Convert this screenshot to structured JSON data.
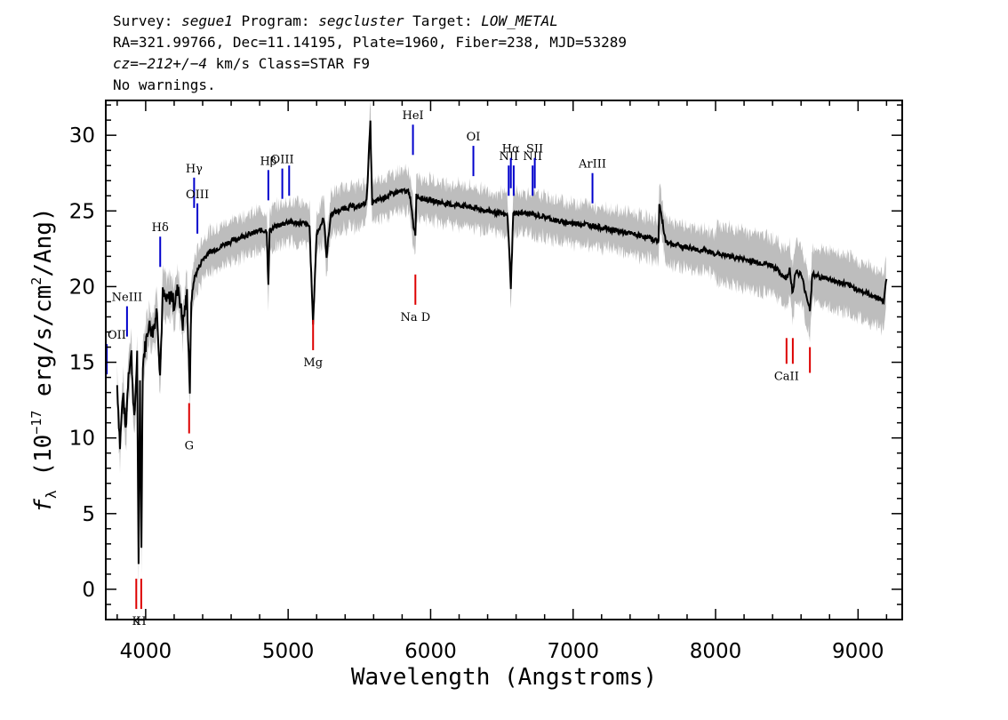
{
  "header": {
    "line1": {
      "survey_label": "Survey: ",
      "survey": "segue1",
      "program_label": " Program: ",
      "program": "segcluster",
      "target_label": " Target: ",
      "target": "LOW_METAL"
    },
    "line2": "RA=321.99766, Dec=11.14195, Plate=1960, Fiber=238, MJD=53289",
    "line3": {
      "cz": "cz=−212+/−4",
      "rest": " km/s Class=STAR F9"
    },
    "line4": "No warnings."
  },
  "chart_data": {
    "type": "line",
    "title": "",
    "xlabel": "Wavelength (Angstroms)",
    "ylabel_parts": {
      "f": "f",
      "sub": "λ",
      "pre": " (10",
      "exp1": "−17",
      "mid": " erg/s/cm",
      "exp2": "2",
      "post": "/Ang)"
    },
    "xlim": [
      3720,
      9310
    ],
    "ylim": [
      -2,
      32.3
    ],
    "xticks": [
      4000,
      5000,
      6000,
      7000,
      8000,
      9000
    ],
    "yticks": [
      0,
      5,
      10,
      15,
      20,
      25,
      30
    ],
    "series": [
      {
        "color": "#000000",
        "x": [
          3800,
          3820,
          3840,
          3860,
          3880,
          3900,
          3920,
          3940,
          3950,
          3960,
          3970,
          3980,
          4000,
          4020,
          4050,
          4080,
          4101,
          4120,
          4150,
          4180,
          4200,
          4230,
          4260,
          4290,
          4310,
          4320,
          4340,
          4360,
          4400,
          4450,
          4500,
          4550,
          4600,
          4650,
          4700,
          4750,
          4800,
          4850,
          4861,
          4870,
          4900,
          4950,
          5000,
          5050,
          5100,
          5150,
          5175,
          5185,
          5200,
          5250,
          5270,
          5300,
          5350,
          5400,
          5450,
          5500,
          5550,
          5577,
          5590,
          5650,
          5700,
          5750,
          5800,
          5850,
          5880,
          5893,
          5900,
          5950,
          6000,
          6050,
          6100,
          6150,
          6200,
          6250,
          6300,
          6350,
          6400,
          6450,
          6500,
          6540,
          6563,
          6580,
          6620,
          6700,
          6800,
          6900,
          7000,
          7100,
          7200,
          7300,
          7400,
          7500,
          7600,
          7605,
          7650,
          7700,
          7800,
          7900,
          8000,
          8100,
          8200,
          8300,
          8400,
          8498,
          8520,
          8542,
          8560,
          8600,
          8662,
          8680,
          8750,
          8800,
          8850,
          8900,
          8950,
          9000,
          9050,
          9100,
          9150,
          9180,
          9200
        ],
        "y": [
          13.5,
          9.5,
          13.0,
          10.5,
          14.5,
          15.5,
          11.0,
          15.5,
          1.2,
          14.0,
          3.0,
          15.0,
          16.2,
          17.5,
          17.0,
          18.5,
          14.2,
          19.5,
          19.0,
          19.5,
          18.8,
          20.0,
          17.5,
          19.5,
          13.0,
          19.0,
          20.5,
          21.0,
          21.8,
          22.3,
          22.5,
          22.8,
          23.0,
          23.2,
          23.4,
          23.5,
          23.7,
          23.7,
          20.0,
          23.7,
          23.9,
          24.1,
          24.3,
          24.2,
          24.2,
          24.0,
          17.5,
          20.0,
          23.5,
          24.5,
          22.0,
          24.8,
          25.0,
          25.2,
          25.3,
          25.3,
          25.6,
          30.8,
          25.5,
          25.8,
          26.0,
          26.2,
          26.3,
          26.3,
          24.0,
          23.5,
          26.0,
          25.8,
          25.7,
          25.6,
          25.5,
          25.4,
          25.4,
          25.3,
          25.2,
          25.1,
          25.0,
          24.9,
          24.8,
          24.7,
          20.0,
          24.8,
          24.9,
          24.8,
          24.6,
          24.3,
          24.2,
          24.1,
          23.9,
          23.7,
          23.5,
          23.3,
          23.0,
          25.5,
          23.0,
          22.8,
          22.6,
          22.4,
          22.2,
          22.0,
          21.8,
          21.6,
          21.4,
          20.5,
          21.2,
          19.5,
          21.0,
          20.8,
          18.5,
          20.8,
          20.6,
          20.5,
          20.3,
          20.2,
          20.0,
          19.8,
          19.6,
          19.4,
          19.2,
          19.0,
          20.5
        ]
      }
    ],
    "lines_blue": [
      {
        "label": "OII",
        "x": 3727,
        "y_bottom": 14.2,
        "y_top": 16.2
      },
      {
        "label": "NeIII",
        "x": 3869,
        "y_bottom": 16.7,
        "y_top": 18.7
      },
      {
        "label": "Hδ",
        "x": 4102,
        "y_bottom": 21.3,
        "y_top": 23.3
      },
      {
        "label": "Hγ",
        "x": 4340,
        "y_bottom": 25.2,
        "y_top": 27.2
      },
      {
        "label": "OIII",
        "x": 4363,
        "y_bottom": 23.5,
        "y_top": 25.5
      },
      {
        "label": "Hβ",
        "x": 4861,
        "y_bottom": 25.7,
        "y_top": 27.7
      },
      {
        "label": "OIII",
        "x": 4959,
        "y_bottom": 25.8,
        "y_top": 27.8
      },
      {
        "label": "",
        "x": 5007,
        "y_bottom": 26.0,
        "y_top": 28.0
      },
      {
        "label": "HeI",
        "x": 5876,
        "y_bottom": 28.7,
        "y_top": 30.7
      },
      {
        "label": "OI",
        "x": 6300,
        "y_bottom": 27.3,
        "y_top": 29.3
      },
      {
        "label": "NII",
        "x": 6548,
        "y_bottom": 26.0,
        "y_top": 28.0
      },
      {
        "label": "Hα",
        "x": 6563,
        "y_bottom": 26.5,
        "y_top": 28.5
      },
      {
        "label": "",
        "x": 6583,
        "y_bottom": 26.0,
        "y_top": 28.0
      },
      {
        "label": "NII",
        "x": 6716,
        "y_bottom": 26.0,
        "y_top": 28.0
      },
      {
        "label": "SII",
        "x": 6731,
        "y_bottom": 26.5,
        "y_top": 28.5
      },
      {
        "label": "ArIII",
        "x": 7136,
        "y_bottom": 25.5,
        "y_top": 27.5
      }
    ],
    "lines_red": [
      {
        "label": "K",
        "x": 3934,
        "y_bottom": -1.3,
        "y_top": 0.7
      },
      {
        "label": "H",
        "x": 3969,
        "y_bottom": -1.3,
        "y_top": 0.7
      },
      {
        "label": "G",
        "x": 4305,
        "y_bottom": 10.3,
        "y_top": 12.3
      },
      {
        "label": "Mg",
        "x": 5175,
        "y_bottom": 15.8,
        "y_top": 17.8
      },
      {
        "label": "Na D",
        "x": 5893,
        "y_bottom": 18.8,
        "y_top": 20.8
      },
      {
        "label": "CaII",
        "x": 8498,
        "y_bottom": 14.9,
        "y_top": 16.6
      },
      {
        "label": "",
        "x": 8542,
        "y_bottom": 14.9,
        "y_top": 16.6
      },
      {
        "label": "",
        "x": 8662,
        "y_bottom": 14.3,
        "y_top": 16.0
      }
    ],
    "colors": {
      "spectrum": "#000000",
      "error_band": "#bdbdbd",
      "emission": "#0000cc",
      "absorption": "#dd0000"
    }
  }
}
